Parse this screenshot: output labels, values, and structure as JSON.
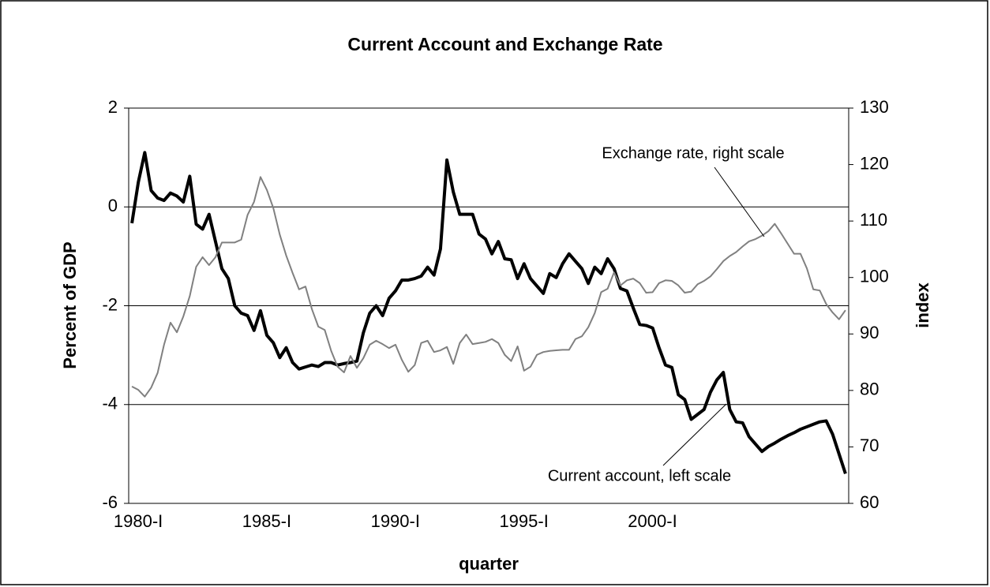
{
  "chart_data": {
    "type": "line",
    "title": "Current Account and Exchange Rate",
    "xlabel": "quarter",
    "ylabel": "Percent of GDP",
    "y2label": "index",
    "annotations": [
      "Exchange rate, right scale",
      "Current account, left scale"
    ],
    "categories": [
      "1980-I",
      null,
      null,
      null,
      null,
      null,
      null,
      null,
      null,
      null,
      null,
      null,
      null,
      null,
      null,
      null,
      null,
      null,
      null,
      null,
      "1985-I",
      null,
      null,
      null,
      null,
      null,
      null,
      null,
      null,
      null,
      null,
      null,
      null,
      null,
      null,
      null,
      null,
      null,
      null,
      null,
      "1990-I",
      null,
      null,
      null,
      null,
      null,
      null,
      null,
      null,
      null,
      null,
      null,
      null,
      null,
      null,
      null,
      null,
      null,
      null,
      null,
      "1995-I",
      null,
      null,
      null,
      null,
      null,
      null,
      null,
      null,
      null,
      null,
      null,
      null,
      null,
      null,
      null,
      null,
      null,
      null,
      null,
      "2000-I",
      null,
      null,
      null,
      null,
      null,
      null,
      null,
      null,
      null,
      null,
      null,
      null,
      null,
      null,
      null,
      null,
      null,
      null,
      null,
      null,
      null,
      null,
      null,
      null,
      null,
      null,
      null,
      null,
      null,
      null,
      null
    ],
    "series": [
      {
        "name": "Current account, left scale",
        "color": "#000000",
        "width": 4,
        "axis": "y",
        "values": [
          -0.33,
          0.5,
          1.1,
          0.33,
          0.18,
          0.13,
          0.28,
          0.22,
          0.1,
          0.62,
          -0.35,
          -0.45,
          -0.15,
          -0.7,
          -1.25,
          -1.45,
          -2.0,
          -2.15,
          -2.2,
          -2.5,
          -2.1,
          -2.6,
          -2.75,
          -3.05,
          -2.85,
          -3.15,
          -3.28,
          -3.24,
          -3.2,
          -3.23,
          -3.15,
          -3.15,
          -3.2,
          -3.17,
          -3.15,
          -3.12,
          -2.55,
          -2.15,
          -2.0,
          -2.2,
          -1.85,
          -1.7,
          -1.48,
          -1.48,
          -1.45,
          -1.4,
          -1.22,
          -1.38,
          -0.85,
          0.95,
          0.3,
          -0.15,
          -0.15,
          -0.15,
          -0.55,
          -0.65,
          -0.95,
          -0.7,
          -1.05,
          -1.07,
          -1.45,
          -1.15,
          -1.45,
          -1.6,
          -1.75,
          -1.35,
          -1.43,
          -1.15,
          -0.95,
          -1.1,
          -1.25,
          -1.55,
          -1.22,
          -1.35,
          -1.05,
          -1.25,
          -1.65,
          -1.7,
          -2.05,
          -2.38,
          -2.4,
          -2.45,
          -2.85,
          -3.2,
          -3.25,
          -3.8,
          -3.9,
          -4.3,
          -4.2,
          -4.1,
          -3.75,
          -3.5,
          -3.35,
          -4.1,
          -4.35,
          -4.37,
          -4.65,
          -4.8,
          -4.95,
          -4.85,
          -4.78,
          -4.7,
          -4.63,
          -4.57,
          -4.5,
          -4.45,
          -4.4,
          -4.35,
          -4.33,
          -4.6,
          -5.0,
          -5.4
        ]
      },
      {
        "name": "Exchange rate, right scale",
        "color": "#808080",
        "width": 2,
        "axis": "y2",
        "values": [
          80.7,
          80.1,
          78.9,
          80.5,
          83.1,
          88.1,
          92.0,
          90.3,
          93.1,
          96.7,
          101.9,
          103.6,
          102.2,
          103.6,
          106.2,
          106.2,
          106.2,
          106.7,
          111.1,
          113.4,
          117.8,
          115.5,
          112.3,
          107.6,
          103.9,
          100.8,
          97.9,
          98.4,
          94.4,
          91.3,
          90.7,
          87.0,
          84.2,
          83.2,
          86.1,
          84.0,
          85.7,
          88.1,
          88.8,
          88.2,
          87.5,
          88.1,
          85.4,
          83.3,
          84.5,
          88.4,
          88.8,
          86.8,
          87.1,
          87.7,
          84.7,
          88.4,
          89.9,
          88.2,
          88.4,
          88.6,
          89.1,
          88.4,
          86.3,
          85.2,
          87.8,
          83.5,
          84.2,
          86.3,
          86.8,
          87.0,
          87.1,
          87.2,
          87.2,
          89.1,
          89.6,
          91.2,
          93.7,
          97.4,
          98.0,
          100.9,
          98.6,
          99.5,
          99.8,
          99.0,
          97.3,
          97.4,
          99.0,
          99.5,
          99.4,
          98.6,
          97.3,
          97.5,
          98.8,
          99.4,
          100.2,
          101.5,
          102.9,
          103.8,
          104.5,
          105.5,
          106.4,
          106.8,
          107.4,
          108.2,
          109.5,
          107.8,
          106.0,
          104.2,
          104.2,
          101.6,
          97.9,
          97.7,
          95.3,
          93.8,
          92.6,
          94.2
        ]
      }
    ],
    "ylim": [
      -6,
      2
    ],
    "yticks": [
      -6,
      -4,
      -2,
      0,
      2
    ],
    "y2lim": [
      60,
      130
    ],
    "y2ticks": [
      60,
      70,
      80,
      90,
      100,
      110,
      120,
      130
    ],
    "grid": true
  }
}
